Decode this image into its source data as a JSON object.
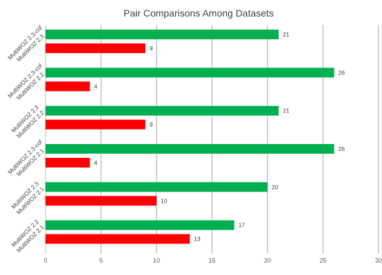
{
  "chart_data": {
    "type": "bar",
    "orientation": "horizontal",
    "title": "Pair Comparisons Among Datasets",
    "xlabel": "",
    "ylabel": "",
    "xlim": [
      0,
      30
    ],
    "xticks": [
      0,
      5,
      10,
      15,
      20,
      25,
      30
    ],
    "grid": true,
    "legend": "none",
    "categories": [
      [
        "MultiWOZ 2.3-cof",
        "MultiWOZ 2.3"
      ],
      [
        "MultiWOZ 2.3-cof",
        "MultiWOZ 2.2"
      ],
      [
        "MultiWOZ 2.3",
        "MultiWOZ 2.2"
      ],
      [
        "MultiWOZ 2.3-cof",
        "MultiWOZ 2.1"
      ],
      [
        "MultiWOZ 2.3",
        "MultiWOZ 2.1"
      ],
      [
        "MultiWOZ 2.2",
        "MultiWOZ 2.1"
      ]
    ],
    "series": [
      {
        "color": "#00b050",
        "values": [
          21,
          26,
          21,
          26,
          20,
          17
        ]
      },
      {
        "color": "#ff0000",
        "values": [
          9,
          4,
          9,
          4,
          10,
          13
        ]
      }
    ]
  }
}
